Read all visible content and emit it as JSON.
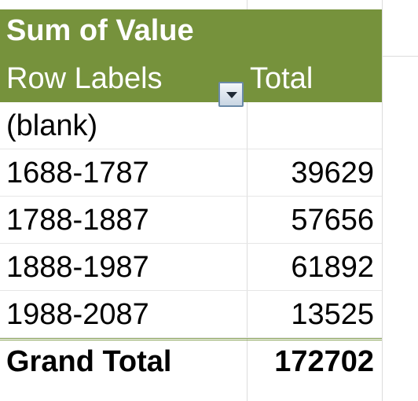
{
  "pivot": {
    "title": "Sum of Value",
    "row_labels_header": "Row Labels",
    "total_header": "Total",
    "filter_icon": "dropdown-arrow-icon",
    "rows": [
      {
        "label": "(blank)",
        "value": ""
      },
      {
        "label": "1688-1787",
        "value": "39629"
      },
      {
        "label": "1788-1887",
        "value": "57656"
      },
      {
        "label": "1888-1987",
        "value": "61892"
      },
      {
        "label": "1988-2087",
        "value": "13525"
      }
    ],
    "grand_total": {
      "label": "Grand Total",
      "value": "172702"
    }
  },
  "colors": {
    "header_bg": "#76923c",
    "header_text": "#ffffff",
    "gridline": "#dcdcdc"
  }
}
